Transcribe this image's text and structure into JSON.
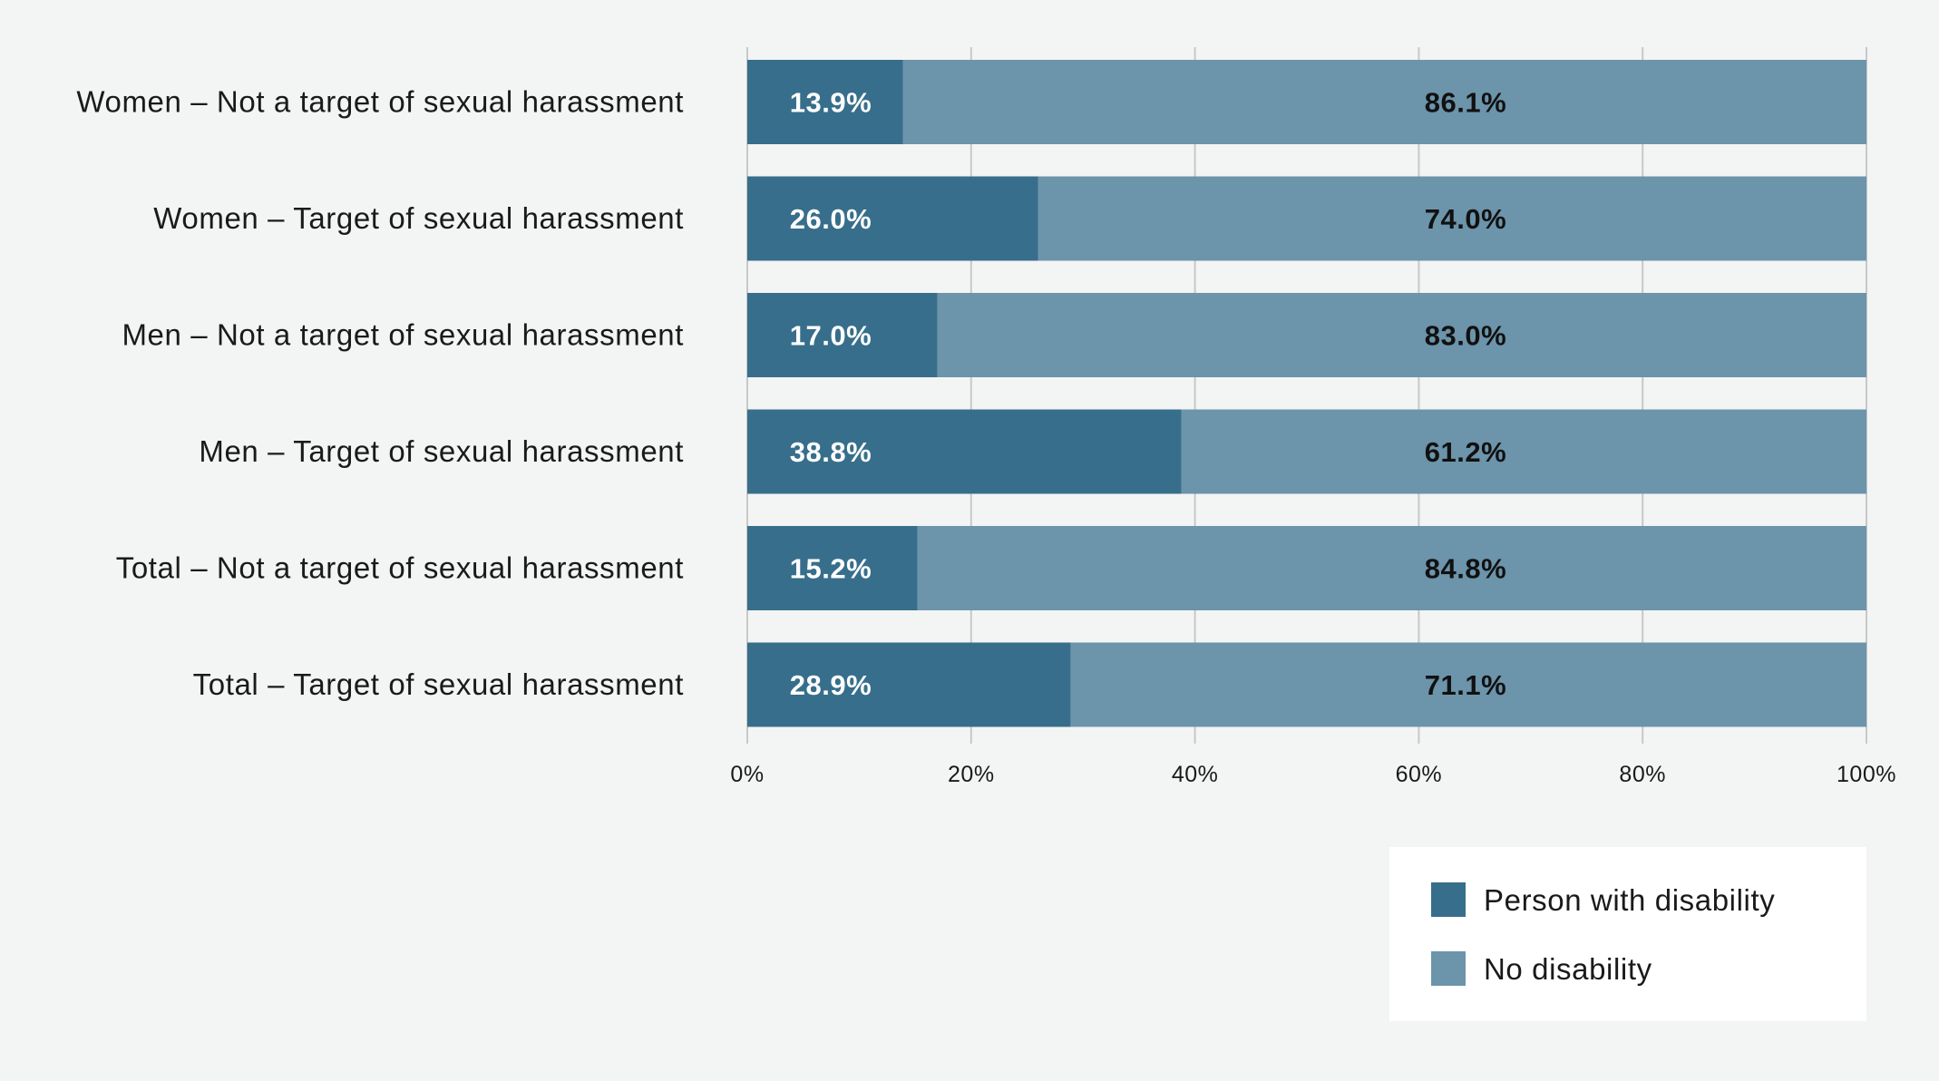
{
  "chart_data": {
    "type": "bar",
    "orientation": "horizontal",
    "stacked": true,
    "title": "",
    "xlabel": "",
    "ylabel": "",
    "categories": [
      "Women – Not a target of sexual harassment",
      "Women – Target of sexual harassment",
      "Men – Not a target of sexual harassment",
      "Men – Target of sexual harassment",
      "Total – Not a target of sexual harassment",
      "Total – Target of sexual harassment"
    ],
    "series": [
      {
        "name": "Person with disability",
        "color": "#376e8b",
        "label_color": "#ffffff",
        "values": [
          13.9,
          26.0,
          17.0,
          38.8,
          15.2,
          28.9
        ],
        "labels": [
          "13.9%",
          "26.0%",
          "17.0%",
          "38.8%",
          "15.2%",
          "28.9%"
        ]
      },
      {
        "name": "No disability",
        "color": "#6c94ab",
        "label_color": "#111111",
        "values": [
          86.1,
          74.0,
          83.0,
          61.2,
          84.8,
          71.1
        ],
        "labels": [
          "86.1%",
          "74.0%",
          "83.0%",
          "61.2%",
          "84.8%",
          "71.1%"
        ]
      }
    ],
    "xlim": [
      0,
      100
    ],
    "xticks": [
      0,
      20,
      40,
      60,
      80,
      100
    ],
    "xtick_labels": [
      "0%",
      "20%",
      "40%",
      "60%",
      "80%",
      "100%"
    ],
    "grid": "vertical",
    "legend_position": "bottom-right"
  }
}
